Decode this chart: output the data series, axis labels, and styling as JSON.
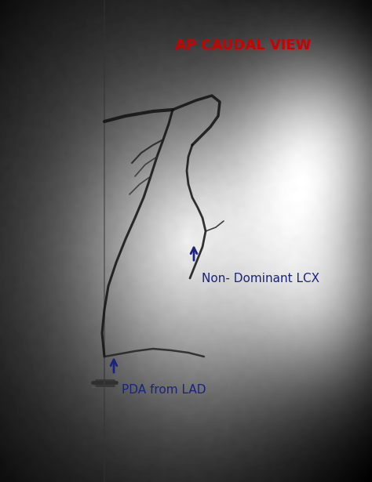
{
  "title": "AP CAUDAL VIEW",
  "title_color": "#CC0000",
  "title_fontsize": 13,
  "annotation1_text": "Non- Dominant LCX",
  "annotation1_color": "#1a237e",
  "annotation1_fontsize": 11,
  "annotation2_text": "PDA from LAD",
  "annotation2_color": "#1a237e",
  "annotation2_fontsize": 11,
  "figsize": [
    4.74,
    6.15
  ],
  "dpi": 100
}
